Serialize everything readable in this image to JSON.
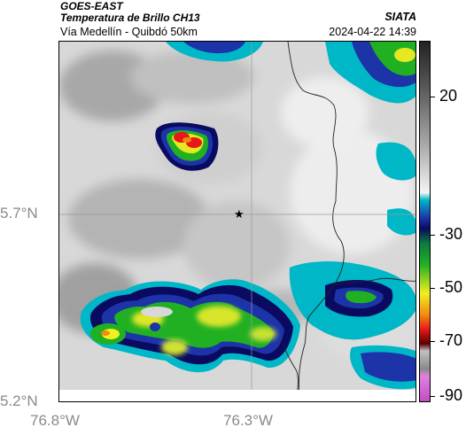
{
  "header": {
    "satellite": "GOES-EAST",
    "product": "Temperatura de Brillo CH13",
    "route": "Vía Medellín - Quibdó 50km",
    "agency": "SIATA",
    "datetime": "2024-04-22 14:39"
  },
  "axes": {
    "lat_ticks": [
      "5.7°N",
      "5.2°N"
    ],
    "lon_ticks": [
      "76.8°W",
      "76.3°W"
    ]
  },
  "colorbar": {
    "ticks": [
      "20",
      "-30",
      "-50",
      "-70",
      "-90"
    ],
    "colors": {
      "warm_gray_dark": "#3a3a3a",
      "warm_gray_light": "#f4f4f4",
      "teal": "#00b7c7",
      "blue": "#1c34a8",
      "navy": "#0a0a60",
      "green": "#22b023",
      "yellow": "#f0f020",
      "orange": "#f08a10",
      "red": "#e81818",
      "dark_red": "#5a0000",
      "magenta": "#c04fc0"
    }
  },
  "marker": {
    "symbol": "★"
  }
}
